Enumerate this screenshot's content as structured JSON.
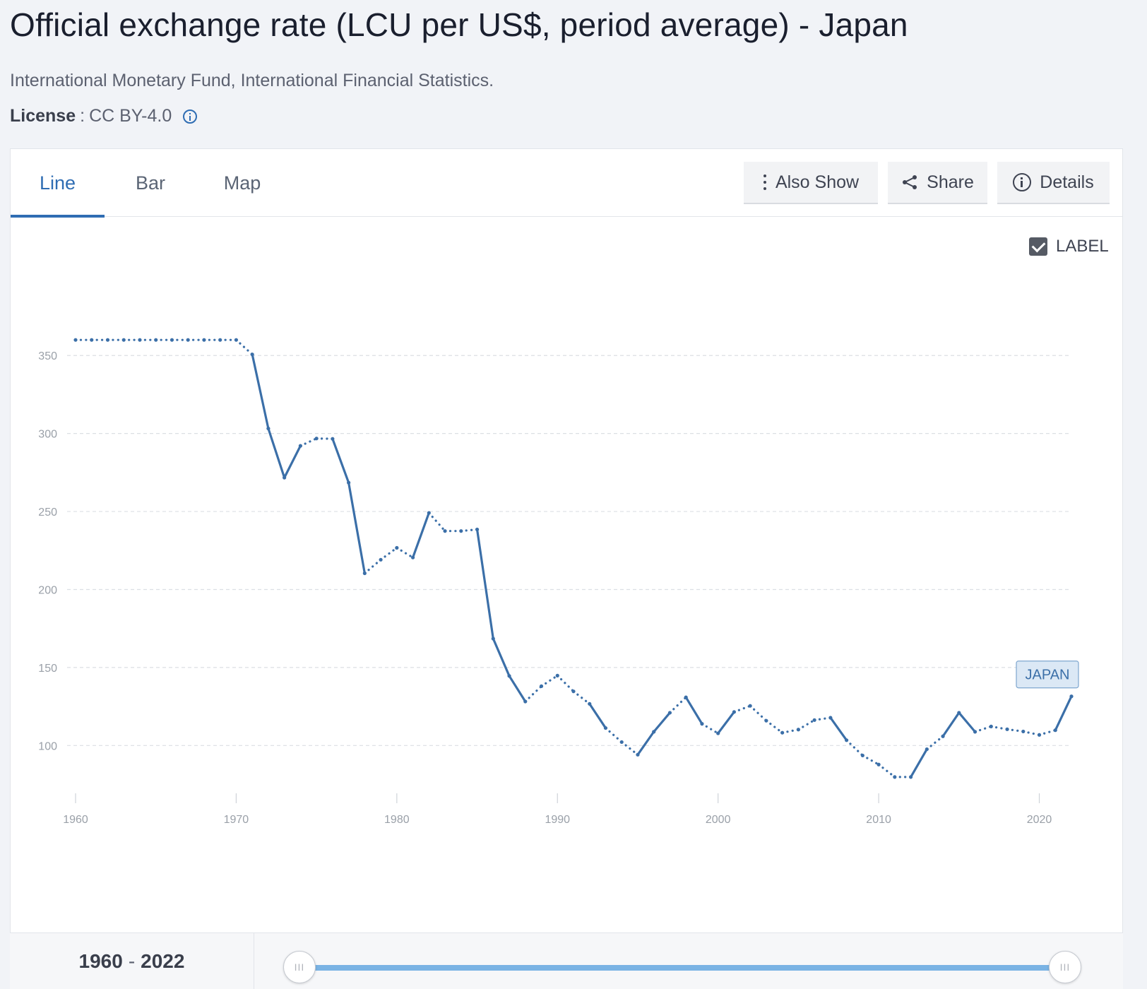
{
  "header": {
    "title": "Official exchange rate (LCU per US$, period average) - Japan",
    "source": "International Monetary Fund, International Financial Statistics.",
    "license_label": "License",
    "license_value": "CC BY-4.0"
  },
  "tabs": [
    {
      "label": "Line",
      "active": true
    },
    {
      "label": "Bar",
      "active": false
    },
    {
      "label": "Map",
      "active": false
    }
  ],
  "toolbar": {
    "also_show_label": "Also Show",
    "share_label": "Share",
    "details_label": "Details"
  },
  "label_toggle": {
    "label": "LABEL",
    "checked": true
  },
  "colors": {
    "series": "#3b6fa8",
    "accent": "#2f6db3",
    "slider": "#7ab3e4"
  },
  "chart_data": {
    "type": "line",
    "title": "",
    "xlabel": "",
    "ylabel": "",
    "xlim": [
      1960,
      2022
    ],
    "ylim": [
      63,
      380
    ],
    "x_ticks": [
      1960,
      1970,
      1980,
      1990,
      2000,
      2010,
      2020
    ],
    "y_ticks": [
      100,
      150,
      200,
      250,
      300,
      350
    ],
    "grid": true,
    "series": [
      {
        "name": "JAPAN",
        "x": [
          1960,
          1961,
          1962,
          1963,
          1964,
          1965,
          1966,
          1967,
          1968,
          1969,
          1970,
          1971,
          1972,
          1973,
          1974,
          1975,
          1976,
          1977,
          1978,
          1979,
          1980,
          1981,
          1982,
          1983,
          1984,
          1985,
          1986,
          1987,
          1988,
          1989,
          1990,
          1991,
          1992,
          1993,
          1994,
          1995,
          1996,
          1997,
          1998,
          1999,
          2000,
          2001,
          2002,
          2003,
          2004,
          2005,
          2006,
          2007,
          2008,
          2009,
          2010,
          2011,
          2012,
          2013,
          2014,
          2015,
          2016,
          2017,
          2018,
          2019,
          2020,
          2021,
          2022
        ],
        "y": [
          360,
          360,
          360,
          360,
          360,
          360,
          360,
          360,
          360,
          360,
          360,
          350.7,
          303.2,
          271.7,
          292.1,
          296.8,
          296.6,
          268.5,
          210.4,
          219.1,
          226.7,
          220.5,
          249.1,
          237.5,
          237.5,
          238.5,
          168.5,
          144.6,
          128.2,
          138.0,
          144.8,
          134.7,
          126.7,
          111.2,
          102.2,
          94.1,
          108.8,
          121.0,
          130.9,
          113.9,
          107.8,
          121.5,
          125.4,
          115.9,
          108.2,
          110.2,
          116.3,
          117.8,
          103.4,
          93.6,
          87.8,
          79.8,
          79.8,
          97.6,
          105.9,
          121.0,
          108.8,
          112.2,
          110.4,
          109.0,
          106.8,
          109.8,
          131.5
        ]
      }
    ]
  },
  "range": {
    "start": "1960",
    "end": "2022",
    "separator": "-",
    "handle_glyph": "III"
  }
}
